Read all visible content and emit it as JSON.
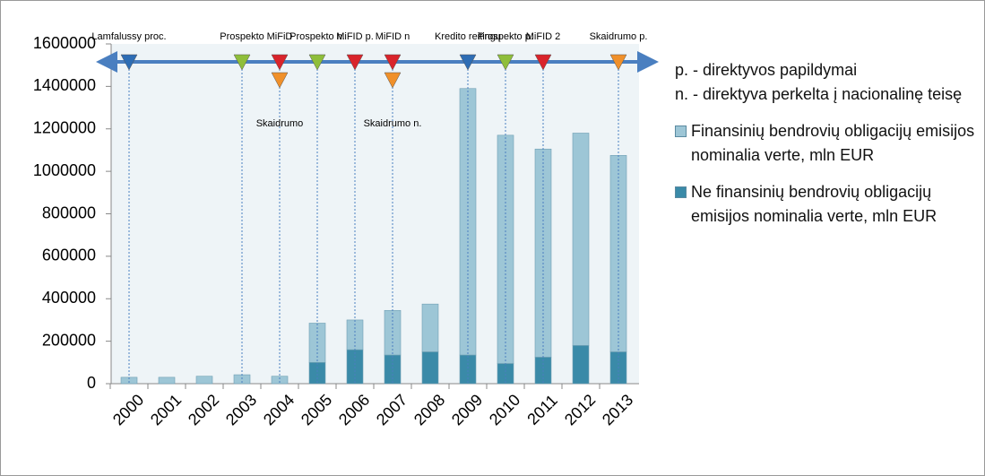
{
  "chart_data": {
    "type": "bar",
    "stacked": true,
    "categories": [
      "2000",
      "2001",
      "2002",
      "2003",
      "2004",
      "2005",
      "2006",
      "2007",
      "2008",
      "2009",
      "2010",
      "2011",
      "2012",
      "2013"
    ],
    "series": [
      {
        "name": "Finansinių bendrovių obligacijų emisijos nominalia verte, mln EUR",
        "color": "#9dc6d6",
        "values": [
          30000,
          30000,
          35000,
          42000,
          35000,
          185000,
          140000,
          210000,
          225000,
          1255000,
          1075000,
          980000,
          1000000,
          925000
        ]
      },
      {
        "name": "Ne finansinių bendrovių obligacijų emisijos nominalia verte, mln EUR",
        "color": "#3a8aa8",
        "values": [
          0,
          0,
          0,
          0,
          0,
          100000,
          160000,
          135000,
          150000,
          135000,
          95000,
          125000,
          180000,
          150000
        ]
      }
    ],
    "ylim": [
      0,
      1600000
    ],
    "yticks": [
      0,
      200000,
      400000,
      600000,
      800000,
      1000000,
      1200000,
      1400000,
      1600000
    ],
    "notes": [
      "p. - direktyvos papildymai",
      "n. - direktyva perkelta į nacionalinę teisę"
    ],
    "annotations": [
      {
        "label": "Lamfalussy proc.",
        "x": "2000",
        "color": "#2e6db4"
      },
      {
        "label": "Prospekto",
        "x": "2003",
        "color": "#8fbe3a"
      },
      {
        "label": "MiFiD",
        "x": "2004",
        "color": "#d9242b"
      },
      {
        "label": "Skaidrumo",
        "x": "2004",
        "color": "#f0902a"
      },
      {
        "label": "Prospekto n.",
        "x": "2005",
        "color": "#8fbe3a"
      },
      {
        "label": "MiFID p.",
        "x": "2006",
        "color": "#d9242b"
      },
      {
        "label": "MiFID n",
        "x": "2007",
        "color": "#d9242b"
      },
      {
        "label": "Skaidrumo n.",
        "x": "2007",
        "color": "#f0902a"
      },
      {
        "label": "Kredito reitingų",
        "x": "2009",
        "color": "#2e6db4"
      },
      {
        "label": "Prospekto p.",
        "x": "2010",
        "color": "#8fbe3a"
      },
      {
        "label": "MiFID 2",
        "x": "2011",
        "color": "#d9242b"
      },
      {
        "label": "Skaidrumo p.",
        "x": "2013",
        "color": "#f0902a"
      }
    ]
  }
}
